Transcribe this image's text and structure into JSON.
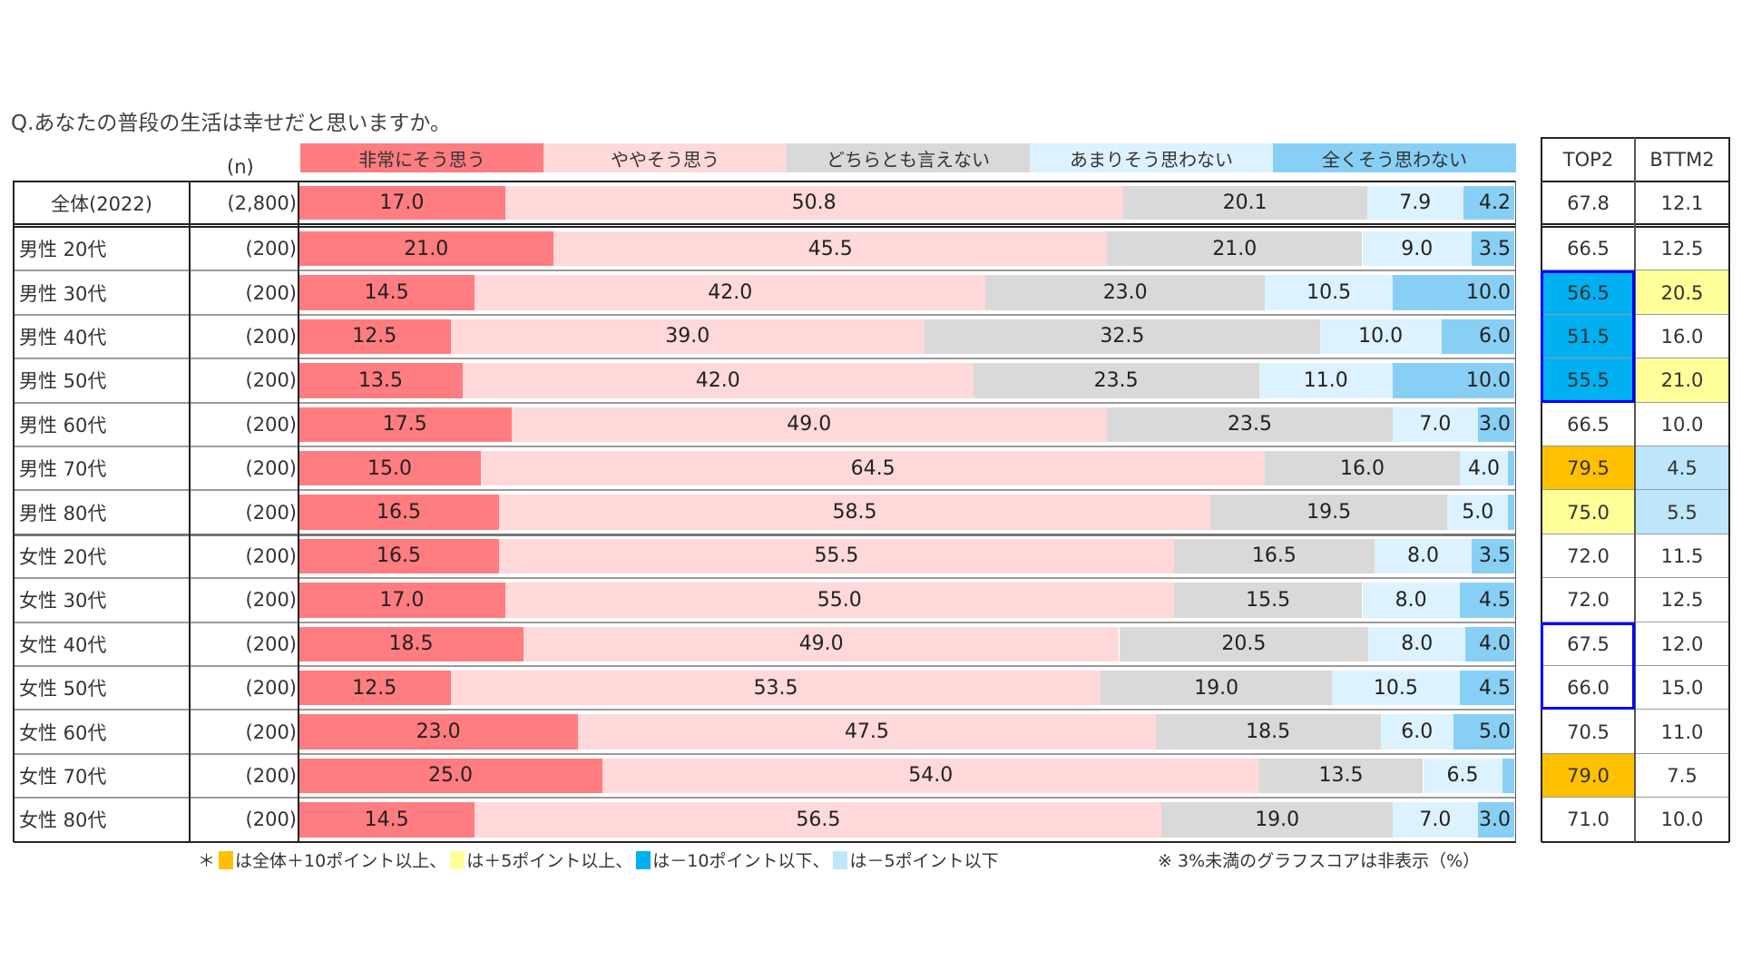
{
  "title": "Q.あなたの普段の生活は幸せだと思いますか。",
  "n_header": "(n)",
  "colors": {
    "very": "#FF7C80",
    "somewhat": "#FFD9DA",
    "neutral": "#D9D9D9",
    "not_much": "#DDF2FF",
    "not_at_all": "#88CFF5",
    "hl_plus10": "#FFC000",
    "hl_plus5": "#FFFF99",
    "hl_minus10": "#00B0F0",
    "hl_minus5": "#BDE6FA",
    "outline": "#0000FF"
  },
  "side_headers": [
    "TOP2",
    "BTTM2"
  ],
  "chart_data": {
    "type": "bar",
    "orientation": "horizontal-stacked-100",
    "title": "Q.あなたの普段の生活は幸せだと思いますか。",
    "unit": "%",
    "xlim": [
      0,
      100
    ],
    "legend": [
      "非常にそう思う",
      "ややそう思う",
      "どちらとも言えない",
      "あまりそう思わない",
      "全くそう思わない"
    ],
    "legend_position": "top",
    "categories": [
      "全体(2022)",
      "男性 20代",
      "男性 30代",
      "男性 40代",
      "男性 50代",
      "男性 60代",
      "男性 70代",
      "男性 80代",
      "女性 20代",
      "女性 30代",
      "女性 40代",
      "女性 50代",
      "女性 60代",
      "女性 70代",
      "女性 80代"
    ],
    "n": [
      "(2,800)",
      "(200)",
      "(200)",
      "(200)",
      "(200)",
      "(200)",
      "(200)",
      "(200)",
      "(200)",
      "(200)",
      "(200)",
      "(200)",
      "(200)",
      "(200)",
      "(200)"
    ],
    "series": [
      {
        "name": "非常にそう思う",
        "values": [
          17.0,
          21.0,
          14.5,
          12.5,
          13.5,
          17.5,
          15.0,
          16.5,
          16.5,
          17.0,
          18.5,
          12.5,
          23.0,
          25.0,
          14.5
        ]
      },
      {
        "name": "ややそう思う",
        "values": [
          50.8,
          45.5,
          42.0,
          39.0,
          42.0,
          49.0,
          64.5,
          58.5,
          55.5,
          55.0,
          49.0,
          53.5,
          47.5,
          54.0,
          56.5
        ]
      },
      {
        "name": "どちらとも言えない",
        "values": [
          20.1,
          21.0,
          23.0,
          32.5,
          23.5,
          23.5,
          16.0,
          19.5,
          16.5,
          15.5,
          20.5,
          19.0,
          18.5,
          13.5,
          19.0
        ]
      },
      {
        "name": "あまりそう思わない",
        "values": [
          7.9,
          9.0,
          10.5,
          10.0,
          11.0,
          7.0,
          4.0,
          5.0,
          8.0,
          8.0,
          8.0,
          10.5,
          6.0,
          6.5,
          7.0
        ]
      },
      {
        "name": "全くそう思わない",
        "values": [
          4.2,
          3.5,
          10.0,
          6.0,
          10.0,
          3.0,
          0.5,
          0.5,
          3.5,
          4.5,
          4.0,
          4.5,
          5.0,
          1.0,
          3.0
        ]
      }
    ],
    "label_threshold": 3,
    "top2": [
      "67.8",
      "66.5",
      "56.5",
      "51.5",
      "55.5",
      "66.5",
      "79.5",
      "75.0",
      "72.0",
      "72.0",
      "67.5",
      "66.0",
      "70.5",
      "79.0",
      "71.0"
    ],
    "bttm2": [
      "12.1",
      "12.5",
      "20.5",
      "16.0",
      "21.0",
      "10.0",
      "4.5",
      "5.5",
      "11.5",
      "12.5",
      "12.0",
      "15.0",
      "11.0",
      "7.5",
      "10.0"
    ],
    "top2_highlight": [
      "",
      "",
      "minus10",
      "minus10",
      "minus10",
      "",
      "plus10",
      "plus5",
      "",
      "",
      "",
      "",
      "",
      "plus10",
      ""
    ],
    "bttm2_highlight": [
      "",
      "",
      "plus5",
      "",
      "plus5",
      "",
      "minus5",
      "minus5",
      "",
      "",
      "",
      "",
      "",
      "",
      ""
    ]
  },
  "footnote": {
    "prefix": "＊",
    "item1": "は全体＋10ポイント以上、",
    "item2": "は＋5ポイント以上、",
    "item3": "は－10ポイント以下、",
    "item4": "は－5ポイント以下",
    "note": "※ 3%未満のグラフスコアは非表示（%）"
  }
}
